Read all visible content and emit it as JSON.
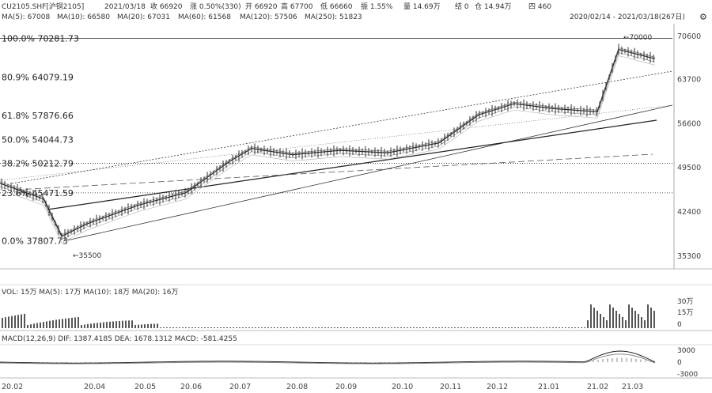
{
  "header": {
    "symbol": "CU2105.SHF[沪铜2105]",
    "date": "2021/03/18",
    "close": "收 66920",
    "change": "涨 0.50%(330)",
    "open": "开 66920",
    "high": "高 67700",
    "low": "低 66660",
    "amplitude": "振 1.55%",
    "volume": "量 14.69万",
    "settle": "结 0",
    "oi": "仓 14.94万",
    "quote": "四 460"
  },
  "range_label": "2020/02/14 - 2021/03/18(267日)",
  "ma_line": [
    {
      "label": "MA(5): 67008"
    },
    {
      "label": "MA(10): 66580"
    },
    {
      "label": "MA(20): 67031"
    },
    {
      "label": "MA(60): 61568"
    },
    {
      "label": "MA(120): 57506"
    },
    {
      "label": "MA(250): 51823"
    }
  ],
  "fib_levels": [
    {
      "label": "100.0%  70281.73",
      "value": 70281.73
    },
    {
      "label": "80.9%  64079.19",
      "value": 64079.19
    },
    {
      "label": "61.8%  57876.66",
      "value": 57876.66
    },
    {
      "label": "50.0%  54044.73",
      "value": 54044.73
    },
    {
      "label": "38.2%  50212.79",
      "value": 50212.79
    },
    {
      "label": "23.6%  45471.59",
      "value": 45471.59
    },
    {
      "label": "0.0%  37807.73",
      "value": 37807.73
    }
  ],
  "low_marker": "←35500",
  "high_marker": "←70000",
  "volume_panel": {
    "label": "VOL: 15万  MA(5): 17万  MA(10): 18万  MA(20): 16万",
    "ticks": [
      "30万",
      "15万",
      "0"
    ]
  },
  "macd_panel": {
    "label": "MACD(12,26,9) DIF: 1387.4185  DEA: 1678.1312  MACD: -581.4255",
    "ticks": [
      "3000",
      "0",
      "-3000"
    ]
  },
  "x_axis": [
    "20.02",
    "20.04",
    "20.05",
    "20.06",
    "20.07",
    "20.08",
    "20.09",
    "20.10",
    "20.11",
    "20.12",
    "21.01",
    "21.02",
    "21.03"
  ],
  "chart_data": {
    "type": "candlestick",
    "title": "CU2105.SHF[沪铜2105]",
    "y_ticks": [
      70600,
      63700,
      56600,
      49500,
      42400,
      35300
    ],
    "ylim": [
      35300,
      70600
    ],
    "series": [
      {
        "name": "MA(5)",
        "last": 67008
      },
      {
        "name": "MA(10)",
        "last": 66580
      },
      {
        "name": "MA(20)",
        "last": 67031
      },
      {
        "name": "MA(60)",
        "last": 61568
      },
      {
        "name": "MA(120)",
        "last": 57506
      },
      {
        "name": "MA(250)",
        "last": 51823
      }
    ],
    "price_path": [
      [
        "20.02",
        47000
      ],
      [
        "20.03",
        44500
      ],
      [
        "20.03b",
        38500
      ],
      [
        "20.04",
        40500
      ],
      [
        "20.05",
        43500
      ],
      [
        "20.06",
        45500
      ],
      [
        "20.07",
        50500
      ],
      [
        "20.07b",
        52600
      ],
      [
        "20.08",
        51600
      ],
      [
        "20.09",
        52300
      ],
      [
        "20.10",
        51900
      ],
      [
        "20.11",
        53500
      ],
      [
        "20.12",
        58000
      ],
      [
        "20.12b",
        59800
      ],
      [
        "21.01",
        59000
      ],
      [
        "21.02",
        58500
      ],
      [
        "21.02b",
        68500
      ],
      [
        "21.03",
        67000
      ]
    ],
    "volume": {
      "ylim": [
        0,
        300000
      ],
      "last": 150000
    },
    "macd": {
      "ylim": [
        -3000,
        3000
      ],
      "dif": 1387.4185,
      "dea": 1678.1312,
      "macd": -581.4255
    }
  }
}
